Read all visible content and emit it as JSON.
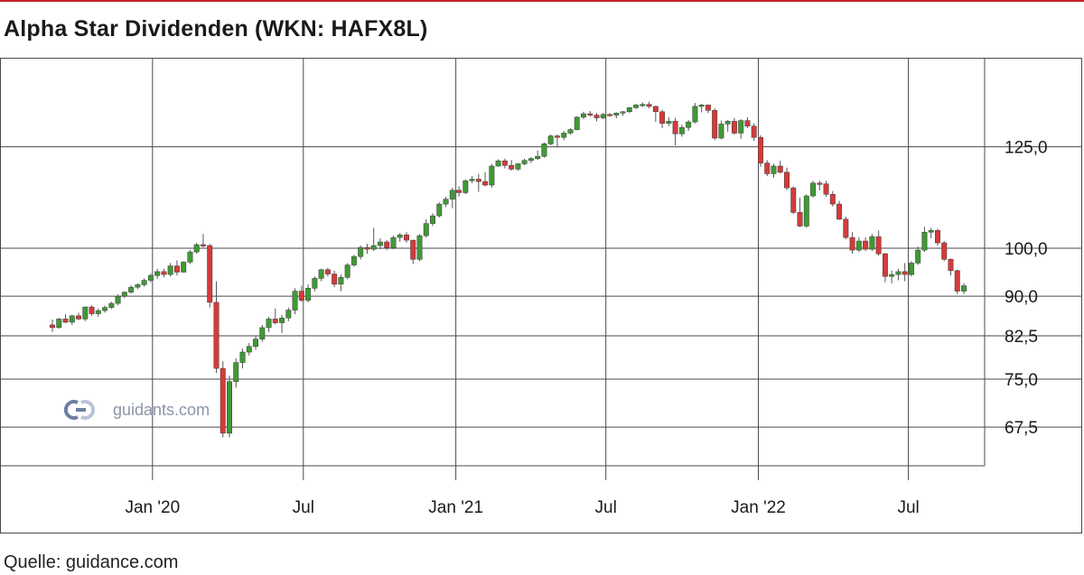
{
  "title": "Alpha Star Dividenden (WKN: HAFX8L)",
  "source": "Quelle: guidance.com",
  "watermark": "guidants.com",
  "colors": {
    "up": "#3f9a34",
    "down": "#d63a3a",
    "wick": "#555555",
    "grid": "#4a4a4a",
    "accent": "#c8202a"
  },
  "chart_data": {
    "type": "candlestick",
    "ylabel": "",
    "y_scale": "log",
    "ylim": [
      62,
      152
    ],
    "y_ticks": [
      {
        "value": 67.5,
        "label": "67,5"
      },
      {
        "value": 75.0,
        "label": "75,0"
      },
      {
        "value": 82.5,
        "label": "82,5"
      },
      {
        "value": 90.0,
        "label": "90,0"
      },
      {
        "value": 100.0,
        "label": "100,0"
      },
      {
        "value": 125.0,
        "label": "125,0"
      }
    ],
    "x_ticks": [
      {
        "date": "2020-01-01",
        "label": "Jan '20"
      },
      {
        "date": "2020-07-01",
        "label": "Jul"
      },
      {
        "date": "2021-01-01",
        "label": "Jan '21"
      },
      {
        "date": "2021-07-01",
        "label": "Jul"
      },
      {
        "date": "2022-01-01",
        "label": "Jan '22"
      },
      {
        "date": "2022-07-01",
        "label": "Jul"
      }
    ],
    "xlim": [
      "2019-07-01",
      "2022-10-01"
    ],
    "grid": true,
    "series": [
      {
        "values": [
          [
            84.5,
            85.5,
            83.2,
            84.0
          ],
          [
            84.0,
            85.8,
            83.8,
            85.6
          ],
          [
            85.6,
            86.5,
            84.8,
            85.0
          ],
          [
            85.0,
            86.4,
            84.5,
            86.2
          ],
          [
            86.2,
            86.8,
            85.4,
            85.6
          ],
          [
            85.6,
            88.0,
            85.2,
            87.9
          ],
          [
            87.9,
            88.2,
            86.2,
            86.6
          ],
          [
            86.6,
            87.6,
            86.0,
            87.2
          ],
          [
            87.2,
            88.2,
            86.8,
            87.8
          ],
          [
            87.8,
            88.9,
            87.5,
            88.6
          ],
          [
            88.6,
            90.4,
            88.2,
            90.0
          ],
          [
            90.0,
            91.0,
            89.6,
            90.8
          ],
          [
            90.8,
            92.2,
            90.5,
            91.8
          ],
          [
            91.8,
            92.6,
            91.4,
            92.3
          ],
          [
            92.3,
            93.6,
            91.9,
            93.2
          ],
          [
            93.2,
            94.6,
            92.8,
            94.2
          ],
          [
            94.2,
            95.6,
            93.5,
            95.0
          ],
          [
            95.0,
            95.6,
            93.8,
            94.4
          ],
          [
            94.4,
            96.8,
            94.0,
            96.2
          ],
          [
            96.2,
            97.4,
            94.2,
            94.9
          ],
          [
            94.9,
            97.2,
            94.8,
            97.0
          ],
          [
            97.0,
            99.6,
            96.6,
            99.2
          ],
          [
            99.2,
            101.2,
            98.8,
            100.8
          ],
          [
            100.8,
            103.2,
            100.2,
            100.6
          ],
          [
            100.6,
            101.0,
            87.8,
            88.8
          ],
          [
            88.8,
            93.0,
            76.0,
            76.8
          ],
          [
            76.8,
            78.0,
            66.0,
            66.6
          ],
          [
            66.6,
            75.6,
            66.0,
            74.6
          ],
          [
            74.6,
            78.5,
            73.6,
            77.8
          ],
          [
            77.8,
            80.2,
            76.8,
            79.6
          ],
          [
            79.6,
            81.2,
            79.0,
            80.6
          ],
          [
            80.6,
            82.6,
            80.0,
            81.9
          ],
          [
            81.9,
            84.5,
            81.4,
            84.0
          ],
          [
            84.0,
            86.0,
            83.2,
            85.6
          ],
          [
            85.6,
            87.6,
            84.6,
            84.9
          ],
          [
            84.9,
            86.4,
            83.0,
            85.8
          ],
          [
            85.8,
            87.8,
            85.2,
            87.3
          ],
          [
            87.3,
            91.6,
            86.5,
            91.0
          ],
          [
            91.0,
            92.1,
            88.9,
            89.2
          ],
          [
            89.2,
            92.4,
            88.8,
            91.6
          ],
          [
            91.6,
            94.0,
            91.0,
            93.6
          ],
          [
            93.6,
            95.6,
            93.0,
            95.4
          ],
          [
            95.4,
            95.8,
            94.0,
            94.5
          ],
          [
            94.5,
            95.2,
            91.8,
            92.4
          ],
          [
            92.4,
            94.4,
            91.0,
            93.8
          ],
          [
            93.8,
            96.8,
            93.4,
            96.4
          ],
          [
            96.4,
            98.6,
            96.0,
            98.2
          ],
          [
            98.2,
            100.6,
            97.6,
            100.2
          ],
          [
            100.2,
            101.0,
            98.8,
            99.8
          ],
          [
            99.8,
            104.6,
            99.4,
            100.6
          ],
          [
            100.6,
            102.2,
            99.8,
            101.4
          ],
          [
            101.4,
            101.8,
            99.6,
            100.1
          ],
          [
            100.1,
            102.8,
            99.8,
            102.4
          ],
          [
            102.4,
            103.4,
            101.4,
            103.0
          ],
          [
            103.0,
            103.6,
            101.2,
            101.8
          ],
          [
            101.8,
            101.9,
            96.6,
            97.6
          ],
          [
            97.6,
            103.2,
            97.2,
            102.8
          ],
          [
            102.8,
            106.6,
            102.4,
            105.6
          ],
          [
            105.6,
            108.0,
            105.0,
            107.4
          ],
          [
            107.4,
            110.6,
            107.0,
            110.2
          ],
          [
            110.2,
            112.0,
            109.5,
            111.4
          ],
          [
            111.4,
            114.2,
            109.2,
            113.6
          ],
          [
            113.6,
            114.6,
            112.0,
            113.0
          ],
          [
            113.0,
            116.4,
            112.6,
            116.0
          ],
          [
            116.0,
            117.2,
            115.4,
            116.4
          ],
          [
            116.4,
            117.8,
            113.2,
            115.8
          ],
          [
            115.8,
            118.2,
            114.6,
            114.9
          ],
          [
            114.9,
            120.4,
            114.2,
            119.8
          ],
          [
            119.8,
            121.6,
            119.6,
            121.2
          ],
          [
            121.2,
            121.8,
            119.2,
            120.0
          ],
          [
            120.0,
            121.4,
            118.6,
            119.0
          ],
          [
            119.0,
            120.6,
            118.6,
            120.4
          ],
          [
            120.4,
            121.8,
            120.0,
            121.3
          ],
          [
            121.3,
            122.2,
            120.6,
            121.8
          ],
          [
            121.8,
            124.0,
            121.4,
            122.4
          ],
          [
            122.4,
            126.2,
            122.0,
            125.8
          ],
          [
            125.8,
            128.4,
            125.4,
            128.0
          ],
          [
            128.0,
            128.4,
            124.8,
            127.6
          ],
          [
            127.6,
            129.4,
            126.8,
            128.8
          ],
          [
            128.8,
            130.2,
            128.4,
            129.8
          ],
          [
            129.8,
            133.6,
            129.6,
            133.4
          ],
          [
            133.4,
            135.0,
            132.8,
            134.4
          ],
          [
            134.4,
            135.2,
            133.6,
            134.0
          ],
          [
            134.0,
            134.6,
            132.2,
            133.2
          ],
          [
            133.2,
            134.6,
            132.8,
            134.2
          ],
          [
            134.2,
            134.6,
            133.6,
            134.0
          ],
          [
            134.0,
            134.8,
            133.0,
            134.6
          ],
          [
            134.6,
            135.2,
            133.8,
            135.0
          ],
          [
            135.0,
            136.4,
            134.6,
            136.2
          ],
          [
            136.2,
            137.4,
            135.8,
            137.0
          ],
          [
            137.0,
            137.8,
            136.4,
            137.2
          ],
          [
            137.2,
            138.0,
            136.0,
            136.6
          ],
          [
            136.6,
            136.8,
            132.0,
            135.0
          ],
          [
            135.0,
            135.6,
            130.2,
            131.6
          ],
          [
            131.6,
            133.4,
            130.8,
            132.2
          ],
          [
            132.2,
            133.2,
            125.4,
            128.6
          ],
          [
            128.6,
            131.2,
            127.8,
            130.4
          ],
          [
            130.4,
            132.6,
            129.4,
            132.0
          ],
          [
            132.0,
            137.6,
            131.6,
            136.6
          ],
          [
            136.6,
            137.4,
            134.8,
            137.0
          ],
          [
            137.0,
            137.2,
            134.6,
            135.4
          ],
          [
            135.4,
            136.0,
            126.8,
            127.4
          ],
          [
            127.4,
            132.4,
            127.0,
            131.4
          ],
          [
            131.4,
            132.6,
            129.2,
            132.2
          ],
          [
            132.2,
            133.2,
            128.4,
            128.8
          ],
          [
            128.8,
            132.8,
            127.2,
            132.4
          ],
          [
            132.4,
            133.4,
            130.2,
            130.8
          ],
          [
            130.8,
            131.6,
            126.6,
            127.6
          ],
          [
            127.6,
            128.2,
            119.6,
            120.6
          ],
          [
            120.6,
            121.4,
            117.2,
            117.8
          ],
          [
            117.8,
            120.4,
            116.8,
            119.8
          ],
          [
            119.8,
            121.2,
            117.8,
            118.2
          ],
          [
            118.2,
            119.4,
            113.6,
            114.2
          ],
          [
            114.2,
            114.6,
            107.8,
            108.2
          ],
          [
            108.2,
            111.8,
            104.8,
            105.0
          ],
          [
            105.0,
            112.6,
            104.6,
            112.2
          ],
          [
            112.2,
            116.0,
            111.8,
            115.4
          ],
          [
            115.4,
            116.0,
            113.6,
            115.2
          ],
          [
            115.2,
            116.0,
            112.0,
            112.6
          ],
          [
            112.6,
            113.4,
            109.6,
            110.2
          ],
          [
            110.2,
            111.0,
            106.4,
            106.6
          ],
          [
            106.6,
            107.2,
            102.0,
            102.4
          ],
          [
            102.4,
            103.6,
            98.8,
            99.6
          ],
          [
            99.6,
            102.4,
            99.2,
            101.6
          ],
          [
            101.6,
            102.4,
            99.4,
            99.8
          ],
          [
            99.8,
            103.2,
            99.4,
            102.6
          ],
          [
            102.6,
            104.0,
            98.4,
            98.8
          ],
          [
            98.8,
            99.0,
            92.8,
            94.0
          ],
          [
            94.0,
            95.2,
            92.6,
            94.4
          ],
          [
            94.4,
            95.6,
            93.2,
            95.0
          ],
          [
            95.0,
            96.8,
            93.0,
            94.4
          ],
          [
            94.4,
            97.2,
            94.0,
            96.8
          ],
          [
            96.8,
            100.4,
            96.4,
            99.6
          ],
          [
            99.6,
            104.8,
            99.2,
            103.6
          ],
          [
            103.6,
            104.6,
            102.2,
            104.0
          ],
          [
            104.0,
            104.4,
            100.6,
            101.2
          ],
          [
            101.2,
            101.6,
            97.2,
            97.6
          ],
          [
            97.6,
            97.8,
            94.2,
            95.2
          ],
          [
            95.2,
            95.4,
            90.4,
            91.0
          ],
          [
            91.0,
            92.6,
            90.4,
            92.1
          ]
        ]
      }
    ]
  }
}
